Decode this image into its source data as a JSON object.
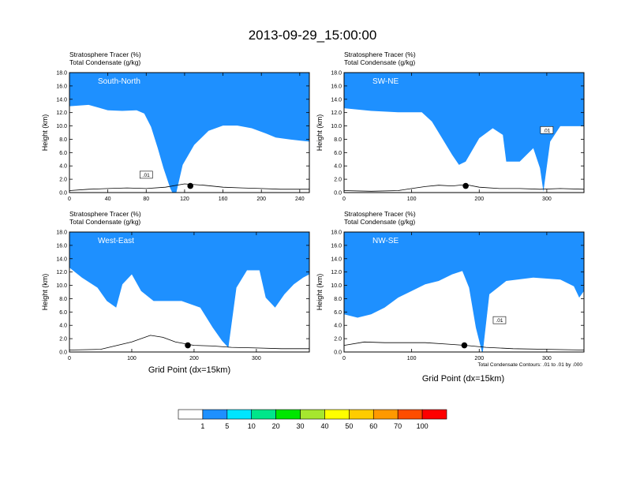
{
  "figure": {
    "title": "2013-09-29_15:00:00",
    "xaxis_label": "Grid Point (dx=15km)",
    "contour_note": "Total Condensate Contours: .01 to .01 by .000"
  },
  "chart_data": [
    {
      "type": "contour",
      "panel": "South-North",
      "subtitle_line1": "Stratosphere Tracer   (%)",
      "subtitle_line2": "Total Condensate   (g/kg)",
      "ylabel": "Height (km)",
      "xlim": [
        0,
        250
      ],
      "ylim": [
        0,
        18
      ],
      "xticks": [
        "0",
        "40",
        "80",
        "120",
        "160",
        "200",
        "240"
      ],
      "xtick_values": [
        0,
        40,
        80,
        120,
        160,
        200,
        240
      ],
      "yticks": [
        "0.0",
        "2.0",
        "4.0",
        "6.0",
        "8.0",
        "10.0",
        "12.0",
        "14.0",
        "16.0",
        "18.0"
      ],
      "marker_x": 126,
      "marker_y": 1.0,
      "contour_label": ".01",
      "tropopause": [
        [
          0,
          15.3
        ],
        [
          20,
          15.5
        ],
        [
          40,
          14.7
        ],
        [
          55,
          14.6
        ],
        [
          70,
          14.7
        ],
        [
          78,
          14.2
        ],
        [
          85,
          12.2
        ],
        [
          92,
          9.0
        ],
        [
          98,
          6.0
        ],
        [
          105,
          3.0
        ],
        [
          110,
          1.5
        ],
        [
          118,
          6.5
        ],
        [
          130,
          9.5
        ],
        [
          145,
          11.6
        ],
        [
          160,
          12.4
        ],
        [
          175,
          12.4
        ],
        [
          190,
          12.0
        ],
        [
          205,
          11.2
        ],
        [
          215,
          10.6
        ],
        [
          230,
          10.3
        ],
        [
          250,
          10.0
        ]
      ],
      "terrain": [
        [
          0,
          0.3
        ],
        [
          20,
          0.5
        ],
        [
          40,
          0.6
        ],
        [
          60,
          0.7
        ],
        [
          80,
          0.6
        ],
        [
          100,
          0.8
        ],
        [
          120,
          1.3
        ],
        [
          140,
          1.1
        ],
        [
          160,
          0.8
        ],
        [
          180,
          0.7
        ],
        [
          200,
          0.6
        ],
        [
          220,
          0.5
        ],
        [
          250,
          0.5
        ]
      ]
    },
    {
      "type": "contour",
      "panel": "SW-NE",
      "subtitle_line1": "Stratosphere Tracer   (%)",
      "subtitle_line2": "Total Condensate   (g/kg)",
      "ylabel": "Height (km)",
      "xlim": [
        0,
        355
      ],
      "ylim": [
        0,
        18
      ],
      "xticks": [
        "0",
        "100",
        "200",
        "300"
      ],
      "xtick_values": [
        0,
        100,
        200,
        300
      ],
      "yticks": [
        "0.0",
        "2.0",
        "4.0",
        "6.0",
        "8.0",
        "10.0",
        "12.0",
        "14.0",
        "16.0",
        "18.0"
      ],
      "marker_x": 180,
      "marker_y": 1.0,
      "contour_label": ".01",
      "tropopause": [
        [
          0,
          15.0
        ],
        [
          40,
          14.6
        ],
        [
          80,
          14.4
        ],
        [
          115,
          14.4
        ],
        [
          130,
          13.0
        ],
        [
          145,
          10.5
        ],
        [
          160,
          8.0
        ],
        [
          170,
          6.5
        ],
        [
          180,
          7.0
        ],
        [
          200,
          10.5
        ],
        [
          220,
          12.0
        ],
        [
          235,
          11.0
        ],
        [
          240,
          7.0
        ],
        [
          260,
          7.0
        ],
        [
          280,
          9.0
        ],
        [
          290,
          6.0
        ],
        [
          295,
          2.5
        ],
        [
          305,
          10.0
        ],
        [
          320,
          12.3
        ],
        [
          355,
          12.3
        ]
      ],
      "terrain": [
        [
          0,
          0.3
        ],
        [
          40,
          0.2
        ],
        [
          80,
          0.3
        ],
        [
          100,
          0.6
        ],
        [
          120,
          0.9
        ],
        [
          140,
          1.1
        ],
        [
          160,
          1.0
        ],
        [
          180,
          1.2
        ],
        [
          200,
          0.8
        ],
        [
          230,
          0.6
        ],
        [
          260,
          0.6
        ],
        [
          290,
          0.5
        ],
        [
          320,
          0.6
        ],
        [
          355,
          0.5
        ]
      ]
    },
    {
      "type": "contour",
      "panel": "West-East",
      "subtitle_line1": "Stratosphere Tracer   (%)",
      "subtitle_line2": "Total Condensate   (g/kg)",
      "ylabel": "Height (km)",
      "xlim": [
        0,
        385
      ],
      "ylim": [
        0,
        18
      ],
      "xticks": [
        "0",
        "100",
        "200",
        "300"
      ],
      "xtick_values": [
        0,
        100,
        200,
        300
      ],
      "yticks": [
        "0.0",
        "2.0",
        "4.0",
        "6.0",
        "8.0",
        "10.0",
        "12.0",
        "14.0",
        "16.0",
        "18.0"
      ],
      "marker_x": 190,
      "marker_y": 1.0,
      "contour_label": "",
      "tropopause": [
        [
          0,
          15.0
        ],
        [
          20,
          13.5
        ],
        [
          45,
          12.0
        ],
        [
          60,
          10.0
        ],
        [
          75,
          9.0
        ],
        [
          85,
          12.5
        ],
        [
          100,
          14.0
        ],
        [
          115,
          11.5
        ],
        [
          135,
          10.0
        ],
        [
          160,
          10.0
        ],
        [
          180,
          10.0
        ],
        [
          210,
          9.0
        ],
        [
          230,
          6.0
        ],
        [
          245,
          4.0
        ],
        [
          255,
          3.0
        ],
        [
          268,
          12.0
        ],
        [
          285,
          14.6
        ],
        [
          305,
          14.6
        ],
        [
          315,
          10.5
        ],
        [
          330,
          9.0
        ],
        [
          345,
          11.0
        ],
        [
          360,
          12.5
        ],
        [
          375,
          13.5
        ],
        [
          385,
          14.0
        ]
      ],
      "terrain": [
        [
          0,
          0.3
        ],
        [
          50,
          0.4
        ],
        [
          100,
          1.5
        ],
        [
          130,
          2.5
        ],
        [
          150,
          2.2
        ],
        [
          170,
          1.5
        ],
        [
          200,
          1.0
        ],
        [
          230,
          0.9
        ],
        [
          260,
          0.7
        ],
        [
          300,
          0.6
        ],
        [
          340,
          0.5
        ],
        [
          385,
          0.5
        ]
      ]
    },
    {
      "type": "contour",
      "panel": "NW-SE",
      "subtitle_line1": "Stratosphere Tracer   (%)",
      "subtitle_line2": "Total Condensate   (g/kg)",
      "ylabel": "Height (km)",
      "xlim": [
        0,
        355
      ],
      "ylim": [
        0,
        18
      ],
      "xticks": [
        "0",
        "100",
        "200",
        "300"
      ],
      "xtick_values": [
        0,
        100,
        200,
        300
      ],
      "yticks": [
        "0.0",
        "2.0",
        "4.0",
        "6.0",
        "8.0",
        "10.0",
        "12.0",
        "14.0",
        "16.0",
        "18.0"
      ],
      "marker_x": 178,
      "marker_y": 1.0,
      "contour_label": ".01",
      "tropopause": [
        [
          0,
          8.0
        ],
        [
          20,
          7.5
        ],
        [
          40,
          8.0
        ],
        [
          60,
          9.0
        ],
        [
          80,
          10.5
        ],
        [
          100,
          11.5
        ],
        [
          120,
          12.5
        ],
        [
          140,
          13.0
        ],
        [
          160,
          14.0
        ],
        [
          175,
          14.5
        ],
        [
          185,
          12.0
        ],
        [
          195,
          6.0
        ],
        [
          205,
          2.0
        ],
        [
          215,
          11.0
        ],
        [
          240,
          13.0
        ],
        [
          280,
          13.5
        ],
        [
          320,
          13.2
        ],
        [
          340,
          12.2
        ],
        [
          348,
          10.5
        ],
        [
          355,
          11.5
        ]
      ],
      "terrain": [
        [
          0,
          1.0
        ],
        [
          30,
          1.5
        ],
        [
          60,
          1.4
        ],
        [
          90,
          1.4
        ],
        [
          120,
          1.4
        ],
        [
          150,
          1.2
        ],
        [
          180,
          1.0
        ],
        [
          210,
          0.7
        ],
        [
          250,
          0.5
        ],
        [
          300,
          0.4
        ],
        [
          355,
          0.3
        ]
      ]
    }
  ],
  "colorbar": {
    "labels": [
      "1",
      "5",
      "10",
      "20",
      "30",
      "40",
      "50",
      "60",
      "70",
      "100"
    ],
    "colors": [
      "#ffffff",
      "#1e90ff",
      "#00e5ff",
      "#00e68a",
      "#00e600",
      "#a6e62e",
      "#ffff00",
      "#ffcc00",
      "#ff9900",
      "#ff4d00",
      "#ff0000"
    ]
  }
}
